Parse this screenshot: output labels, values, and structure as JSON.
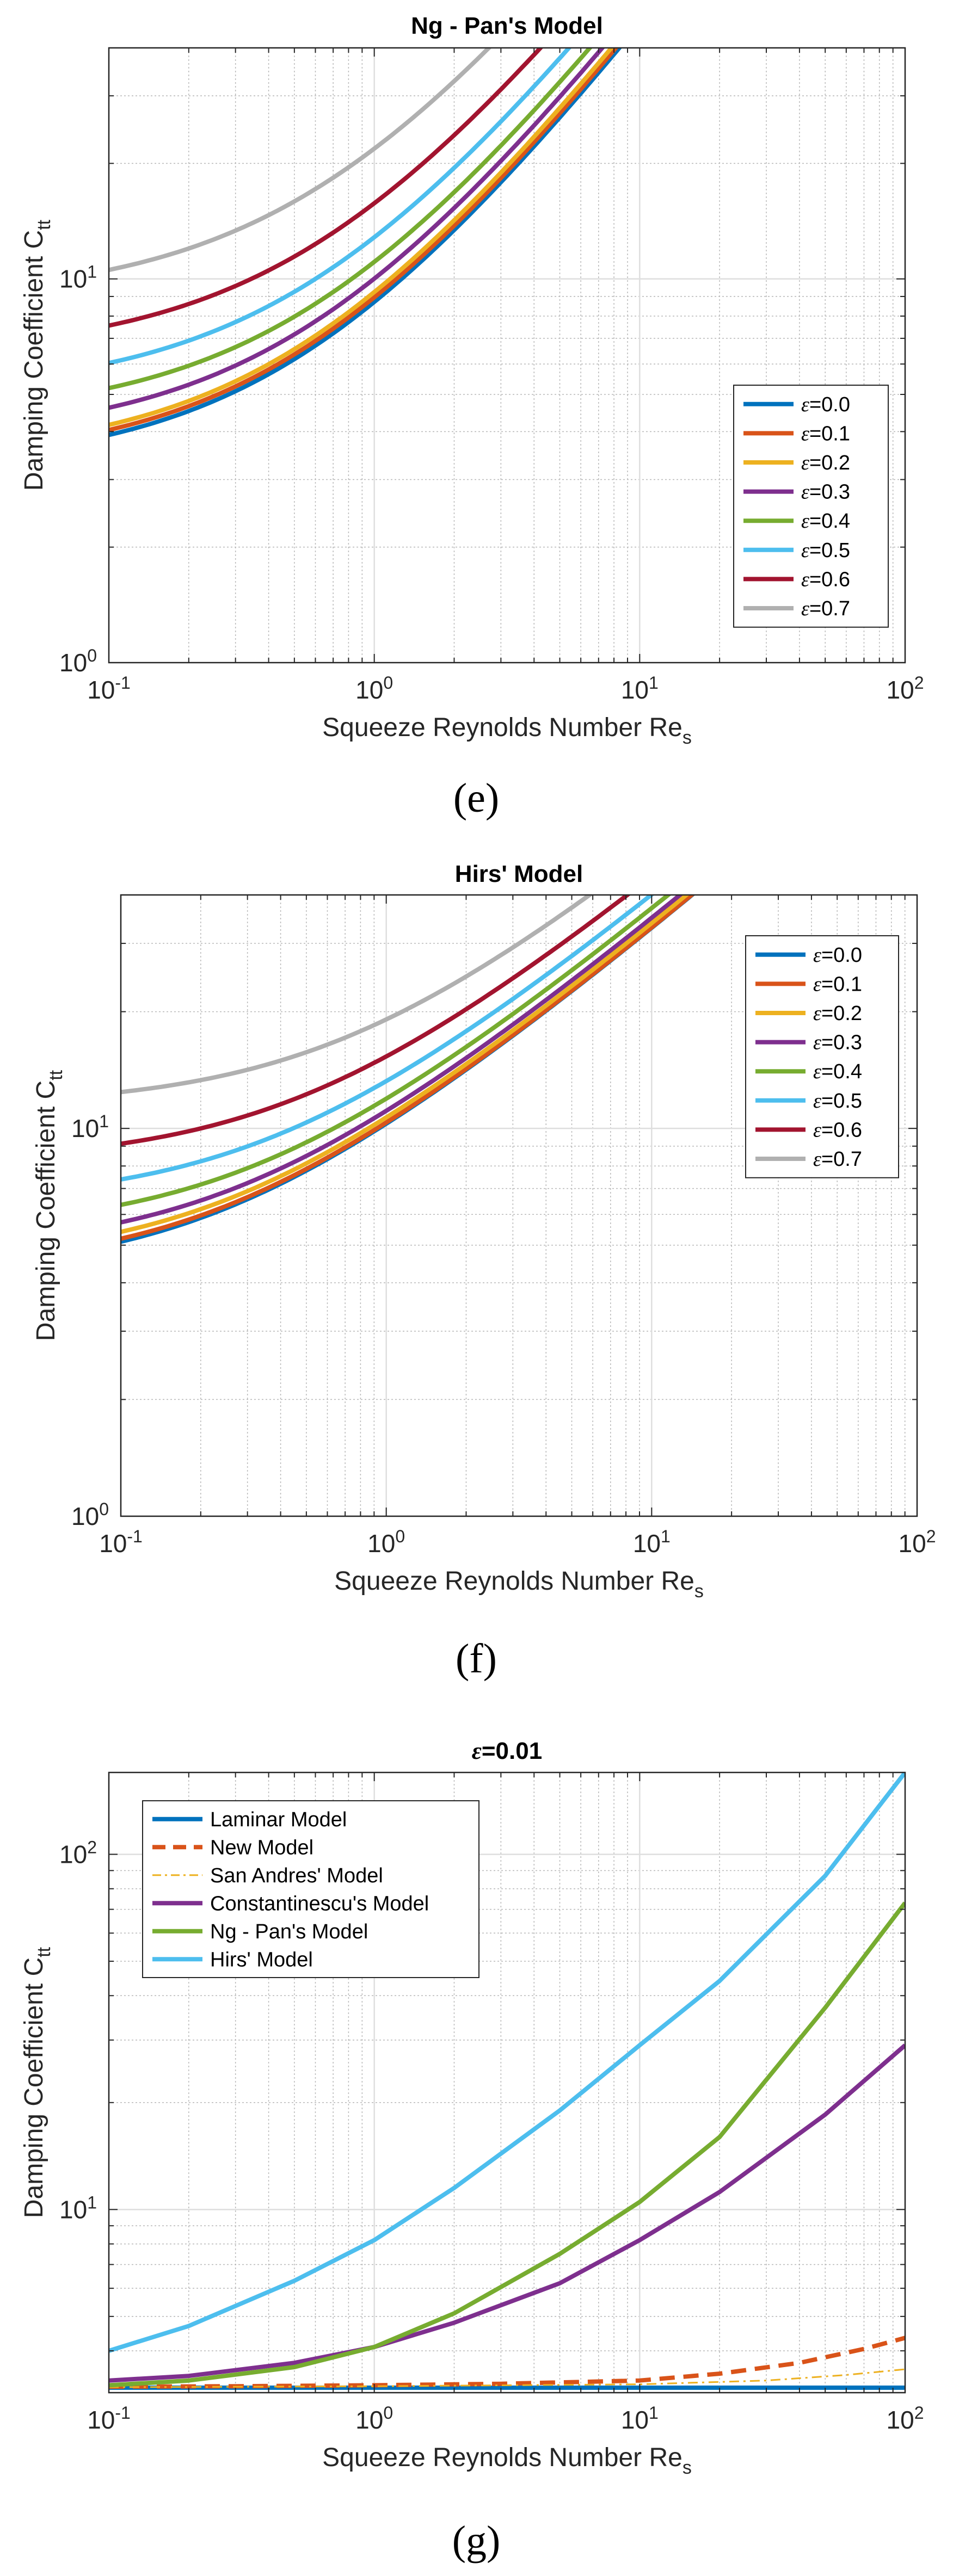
{
  "colors": {
    "eps0": "#0072BD",
    "eps1": "#D95319",
    "eps2": "#EDB120",
    "eps3": "#7E2F8E",
    "eps4": "#77AC30",
    "eps5": "#4DBEEE",
    "eps6": "#A2142F",
    "eps7": "#B0B0B0",
    "grid_major": "#dedede",
    "grid_minor": "#b8b8b8",
    "axes": "#262626"
  },
  "chart_data": [
    {
      "type": "line",
      "panel_label": "(e)",
      "title": "Ng - Pan's Model",
      "xlabel": "Squeeze Reynolds Number Re",
      "xlabel_sub": "s",
      "ylabel": "Damping Coefficient C",
      "ylabel_sub": "tt",
      "xscale": "log",
      "yscale": "log",
      "xlim": [
        0.1,
        100
      ],
      "ylim": [
        1,
        40
      ],
      "x_ticks": [
        {
          "value": 0.1,
          "base": "10",
          "exp": "-1"
        },
        {
          "value": 1,
          "base": "10",
          "exp": "0"
        },
        {
          "value": 10,
          "base": "10",
          "exp": "1"
        },
        {
          "value": 100,
          "base": "10",
          "exp": "2"
        }
      ],
      "y_ticks": [
        {
          "value": 1,
          "base": "10",
          "exp": "0"
        },
        {
          "value": 10,
          "base": "10",
          "exp": "1"
        }
      ],
      "grid": true,
      "legend_position": "right-middle",
      "model": "ngpan",
      "series": [
        {
          "name": "ε=0.0",
          "eps_label": "=0.0",
          "color": "#0072BD",
          "dash": "solid",
          "c0": 3.2,
          "ratio": 1.0
        },
        {
          "name": "ε=0.1",
          "eps_label": "=0.1",
          "color": "#D95319",
          "dash": "solid",
          "c0": 3.3,
          "ratio": 1.03
        },
        {
          "name": "ε=0.2",
          "eps_label": "=0.2",
          "color": "#EDB120",
          "dash": "solid",
          "c0": 3.4,
          "ratio": 1.07
        },
        {
          "name": "ε=0.3",
          "eps_label": "=0.3",
          "color": "#7E2F8E",
          "dash": "solid",
          "c0": 3.8,
          "ratio": 1.15
        },
        {
          "name": "ε=0.4",
          "eps_label": "=0.4",
          "color": "#77AC30",
          "dash": "solid",
          "c0": 4.3,
          "ratio": 1.27
        },
        {
          "name": "ε=0.5",
          "eps_label": "=0.5",
          "color": "#4DBEEE",
          "dash": "solid",
          "c0": 5.0,
          "ratio": 1.5
        },
        {
          "name": "ε=0.6",
          "eps_label": "=0.6",
          "color": "#A2142F",
          "dash": "solid",
          "c0": 6.3,
          "ratio": 1.85
        },
        {
          "name": "ε=0.7",
          "eps_label": "=0.7",
          "color": "#B0B0B0",
          "dash": "solid",
          "c0": 8.8,
          "ratio": 2.65
        }
      ]
    },
    {
      "type": "line",
      "panel_label": "(f)",
      "title": "Hirs' Model",
      "xlabel": "Squeeze Reynolds Number Re",
      "xlabel_sub": "s",
      "ylabel": "Damping Coefficient C",
      "ylabel_sub": "tt",
      "xscale": "log",
      "yscale": "log",
      "xlim": [
        0.1,
        100
      ],
      "ylim": [
        1,
        40
      ],
      "x_ticks": [
        {
          "value": 0.1,
          "base": "10",
          "exp": "-1"
        },
        {
          "value": 1,
          "base": "10",
          "exp": "0"
        },
        {
          "value": 10,
          "base": "10",
          "exp": "1"
        },
        {
          "value": 100,
          "base": "10",
          "exp": "2"
        }
      ],
      "y_ticks": [
        {
          "value": 1,
          "base": "10",
          "exp": "0"
        },
        {
          "value": 10,
          "base": "10",
          "exp": "1"
        }
      ],
      "grid": true,
      "legend_position": "top-right",
      "model": "hirs",
      "series": [
        {
          "name": "ε=0.0",
          "eps_label": "=0.0",
          "color": "#0072BD",
          "dash": "solid",
          "c0": 4.1,
          "ratio": 1.0
        },
        {
          "name": "ε=0.1",
          "eps_label": "=0.1",
          "color": "#D95319",
          "dash": "solid",
          "c0": 4.2,
          "ratio": 1.04
        },
        {
          "name": "ε=0.2",
          "eps_label": "=0.2",
          "color": "#EDB120",
          "dash": "solid",
          "c0": 4.4,
          "ratio": 1.08
        },
        {
          "name": "ε=0.3",
          "eps_label": "=0.3",
          "color": "#7E2F8E",
          "dash": "solid",
          "c0": 4.7,
          "ratio": 1.15
        },
        {
          "name": "ε=0.4",
          "eps_label": "=0.4",
          "color": "#77AC30",
          "dash": "solid",
          "c0": 5.3,
          "ratio": 1.29
        },
        {
          "name": "ε=0.5",
          "eps_label": "=0.5",
          "color": "#4DBEEE",
          "dash": "solid",
          "c0": 6.3,
          "ratio": 1.53
        },
        {
          "name": "ε=0.6",
          "eps_label": "=0.6",
          "color": "#A2142F",
          "dash": "solid",
          "c0": 8.0,
          "ratio": 1.95
        },
        {
          "name": "ε=0.7",
          "eps_label": "=0.7",
          "color": "#B0B0B0",
          "dash": "solid",
          "c0": 11.2,
          "ratio": 2.73
        }
      ]
    },
    {
      "type": "line",
      "panel_label": "(g)",
      "title": "ε=0.01",
      "title_eps": "=0.01",
      "xlabel": "Squeeze Reynolds Number Re",
      "xlabel_sub": "s",
      "ylabel": "Damping Coefficient C",
      "ylabel_sub": "tt",
      "xscale": "log",
      "yscale": "log",
      "xlim": [
        0.1,
        100
      ],
      "ylim": [
        3.05,
        170
      ],
      "x_ticks": [
        {
          "value": 0.1,
          "base": "10",
          "exp": "-1"
        },
        {
          "value": 1,
          "base": "10",
          "exp": "0"
        },
        {
          "value": 10,
          "base": "10",
          "exp": "1"
        },
        {
          "value": 100,
          "base": "10",
          "exp": "2"
        }
      ],
      "y_ticks": [
        {
          "value": 10,
          "base": "10",
          "exp": "1"
        },
        {
          "value": 100,
          "base": "10",
          "exp": "2"
        }
      ],
      "grid": true,
      "legend_position": "top-left",
      "series": [
        {
          "name": "Laminar Model",
          "color": "#0072BD",
          "dash": "solid",
          "x": [
            0.1,
            1,
            10,
            100
          ],
          "y": [
            3.15,
            3.15,
            3.15,
            3.15
          ]
        },
        {
          "name": "New Model",
          "color": "#D95319",
          "dash": "dashed",
          "x": [
            0.1,
            0.3,
            1,
            3,
            10,
            20,
            40,
            70,
            100
          ],
          "y": [
            3.17,
            3.18,
            3.2,
            3.23,
            3.3,
            3.45,
            3.7,
            4.05,
            4.35
          ]
        },
        {
          "name": "San Andres' Model",
          "color": "#EDB120",
          "dash": "dashdot",
          "x": [
            0.1,
            1,
            10,
            30,
            60,
            100
          ],
          "y": [
            3.16,
            3.18,
            3.22,
            3.3,
            3.42,
            3.55
          ]
        },
        {
          "name": "Constantinescu's Model",
          "color": "#7E2F8E",
          "dash": "solid",
          "x": [
            0.1,
            0.2,
            0.5,
            1,
            2,
            5,
            10,
            20,
            50,
            100
          ],
          "y": [
            3.3,
            3.4,
            3.7,
            4.1,
            4.8,
            6.2,
            8.2,
            11.2,
            18.5,
            29
          ]
        },
        {
          "name": "Ng - Pan's Model",
          "color": "#77AC30",
          "dash": "solid",
          "x": [
            0.1,
            0.2,
            0.5,
            1,
            2,
            5,
            10,
            20,
            50,
            100
          ],
          "y": [
            3.2,
            3.3,
            3.6,
            4.1,
            5.1,
            7.5,
            10.5,
            16,
            37,
            73
          ]
        },
        {
          "name": "Hirs' Model",
          "color": "#4DBEEE",
          "dash": "solid",
          "x": [
            0.1,
            0.2,
            0.5,
            1,
            2,
            5,
            10,
            20,
            50,
            100
          ],
          "y": [
            4.0,
            4.7,
            6.3,
            8.2,
            11.5,
            19,
            29,
            44,
            87,
            170
          ]
        }
      ]
    }
  ]
}
